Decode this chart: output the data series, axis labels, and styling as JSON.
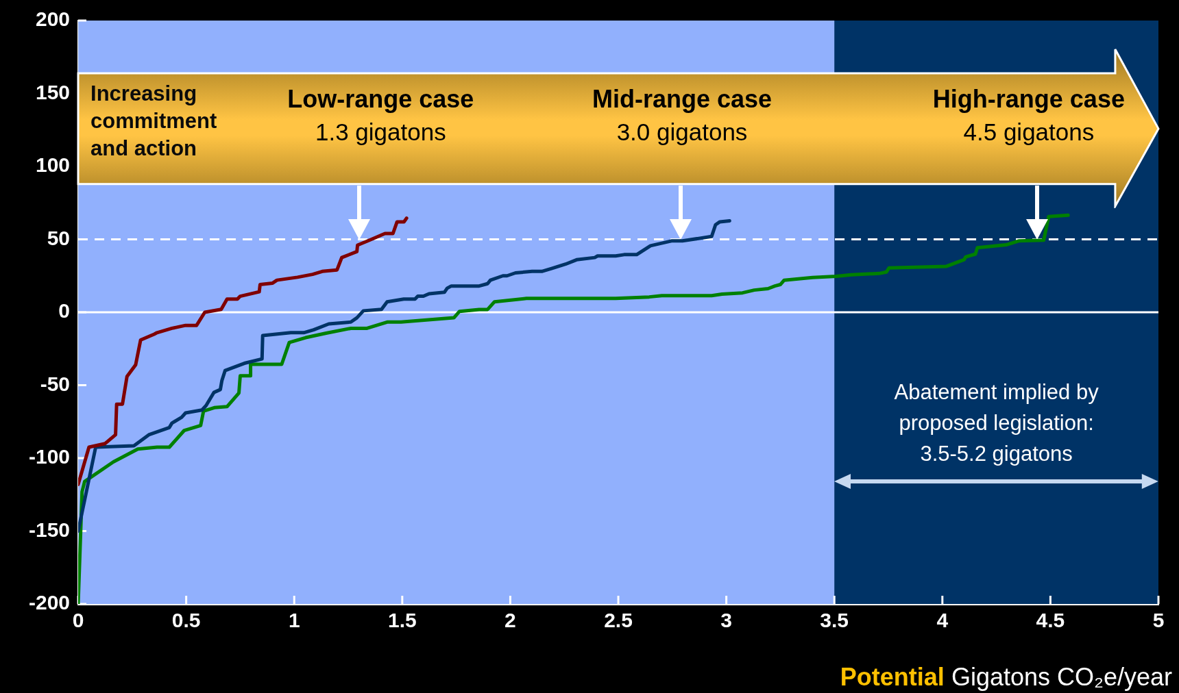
{
  "chart_data": {
    "type": "line",
    "xlabel": "Potential Gigatons CO₂e/year",
    "xlim": [
      0,
      5
    ],
    "ylim": [
      -200,
      200
    ],
    "xticks": [
      0,
      0.5,
      1,
      1.5,
      2,
      2.5,
      3,
      3.5,
      4,
      4.5,
      5
    ],
    "yticks": [
      -200,
      -150,
      -100,
      -50,
      0,
      50,
      100,
      150,
      200
    ],
    "marker": "none",
    "line_style": "solid",
    "grid": false,
    "series": [
      {
        "color": "#800000",
        "x": [
          0,
          0.05,
          0.125,
          0.173,
          0.178,
          0.205,
          0.226,
          0.266,
          0.289,
          0.352,
          0.365,
          0.434,
          0.497,
          0.548,
          0.586,
          0.662,
          0.689,
          0.737,
          0.75,
          0.838,
          0.842,
          0.9,
          0.92,
          1.015,
          1.085,
          1.13,
          1.198,
          1.22,
          1.29,
          1.293,
          1.35,
          1.42,
          1.457,
          1.476,
          1.508,
          1.52
        ],
        "values": [
          -118,
          -92.5,
          -90,
          -84,
          -63,
          -63,
          -44,
          -36,
          -19,
          -15,
          -14,
          -11,
          -9,
          -9,
          0,
          2,
          9,
          9,
          11,
          14,
          19,
          20,
          22,
          24,
          26,
          28,
          29,
          37.5,
          41.6,
          46,
          49.5,
          54,
          54,
          62,
          62,
          64.5
        ]
      },
      {
        "color": "#003366",
        "x": [
          0,
          0.081,
          0.258,
          0.327,
          0.422,
          0.434,
          0.479,
          0.497,
          0.573,
          0.592,
          0.628,
          0.658,
          0.665,
          0.68,
          0.769,
          0.851,
          0.854,
          0.984,
          1.044,
          1.09,
          1.16,
          1.262,
          1.29,
          1.32,
          1.404,
          1.43,
          1.507,
          1.559,
          1.572,
          1.598,
          1.624,
          1.695,
          1.708,
          1.727,
          1.856,
          1.895,
          1.908,
          1.966,
          1.985,
          2.024,
          2.101,
          2.146,
          2.191,
          2.256,
          2.307,
          2.391,
          2.404,
          2.488,
          2.527,
          2.585,
          2.649,
          2.746,
          2.797,
          2.932,
          2.95,
          2.97,
          3.015
        ],
        "values": [
          -150,
          -92.5,
          -91.5,
          -84,
          -79,
          -76,
          -72,
          -69,
          -67,
          -64,
          -55,
          -53,
          -47,
          -40,
          -35,
          -32,
          -16,
          -14,
          -14,
          -12,
          -8,
          -6.7,
          -3.8,
          1,
          2,
          7.2,
          9,
          9,
          11,
          11,
          12.7,
          13.7,
          16.5,
          18,
          18,
          19.6,
          22,
          25,
          25,
          27,
          28,
          28,
          30,
          33,
          36,
          37.5,
          38.6,
          38.6,
          39.5,
          39.5,
          45.6,
          48.9,
          48.9,
          52,
          60,
          62,
          62.7
        ]
      },
      {
        "color": "#008000",
        "x": [
          0,
          0.018,
          0.03,
          0.163,
          0.276,
          0.365,
          0.422,
          0.491,
          0.567,
          0.58,
          0.63,
          0.689,
          0.744,
          0.75,
          0.798,
          0.798,
          0.942,
          0.977,
          1.053,
          1.148,
          1.262,
          1.337,
          1.43,
          1.494,
          1.739,
          1.765,
          1.856,
          1.895,
          1.927,
          2.075,
          2.488,
          2.643,
          2.701,
          2.932,
          2.98,
          3.075,
          3.129,
          3.193,
          3.225,
          3.25,
          3.267,
          3.399,
          3.508,
          3.579,
          3.708,
          3.741,
          3.753,
          4.017,
          4.101,
          4.108,
          4.153,
          4.162,
          4.295,
          4.353,
          4.469,
          4.492,
          4.582
        ],
        "values": [
          -200,
          -123,
          -116,
          -102.6,
          -93.8,
          -92.5,
          -92.5,
          -81,
          -77.6,
          -67.8,
          -65.4,
          -64.7,
          -55.3,
          -43.6,
          -43.6,
          -35.7,
          -35.7,
          -20.7,
          -17.4,
          -14.3,
          -11,
          -11,
          -6.7,
          -6.7,
          -3.8,
          0.6,
          1.9,
          1.9,
          7.2,
          9.5,
          9.5,
          10.5,
          11.4,
          11.4,
          12.4,
          13.3,
          15.2,
          16.2,
          18,
          19,
          21.9,
          23.8,
          24.7,
          25.7,
          26.6,
          27.6,
          30.4,
          31.4,
          36.1,
          38,
          39.9,
          44.3,
          46.2,
          48.9,
          49.4,
          65.6,
          66.5
        ]
      }
    ],
    "bands": [
      {
        "axis": "x",
        "from": 3.5,
        "to": 5,
        "color": "#003366"
      }
    ],
    "ref_lines": [
      {
        "axis": "y",
        "value": 0,
        "color": "#ffffff",
        "line_style": "solid"
      },
      {
        "axis": "y",
        "value": 50,
        "color": "#ffffff",
        "line_style": "dashed"
      }
    ],
    "annotations": [
      "Increasing commitment and action",
      "Low-range case\n1.3 gigatons",
      "Mid-range case\n3.0 gigatons",
      "High-range case\n4.5 gigatons",
      "Abatement implied by\nproposed legislation:\n3.5-5.2 gigatons"
    ]
  }
}
